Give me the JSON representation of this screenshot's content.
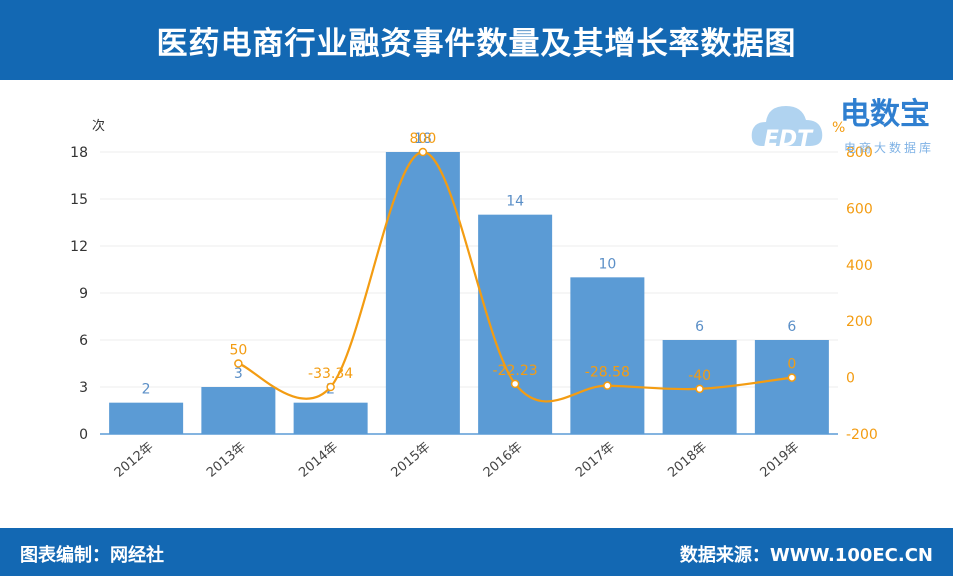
{
  "header": {
    "title": "医药电商行业融资事件数量及其增长率数据图"
  },
  "footer": {
    "left": "图表编制：网经社",
    "right": "数据来源：WWW.100EC.CN"
  },
  "logo": {
    "text": "电数宝",
    "subtext": "电商大数据库",
    "mark": "EDT"
  },
  "colors": {
    "header_bg": "#1368b3",
    "bar": "#5b9bd5",
    "line": "#f39c12",
    "axis_left": "#333333",
    "axis_right": "#f39c12"
  },
  "chart_data": {
    "type": "bar",
    "categories": [
      "2012年",
      "2013年",
      "2014年",
      "2015年",
      "2016年",
      "2017年",
      "2018年",
      "2019年"
    ],
    "series": [
      {
        "type": "bar",
        "axis": "left",
        "values": [
          2,
          3,
          2,
          18,
          14,
          10,
          6,
          6
        ],
        "labels": [
          "2",
          "3",
          "2",
          "18",
          "14",
          "10",
          "6",
          "6"
        ]
      },
      {
        "type": "line",
        "axis": "right",
        "values": [
          null,
          50,
          -33.34,
          800,
          -22.23,
          -28.58,
          -40,
          0
        ],
        "labels": [
          "",
          "50",
          "-33.34",
          "800",
          "-22.23",
          "-28.58",
          "-40",
          "0"
        ]
      }
    ],
    "y_left": {
      "unit": "次",
      "min": 0,
      "max": 18,
      "ticks": [
        "0",
        "3",
        "6",
        "9",
        "12",
        "15",
        "18"
      ]
    },
    "y_right": {
      "unit": "%",
      "min": -200,
      "max": 800,
      "ticks": [
        "-200",
        "0",
        "200",
        "400",
        "600",
        "800"
      ]
    },
    "grid": true,
    "legend": "none"
  }
}
